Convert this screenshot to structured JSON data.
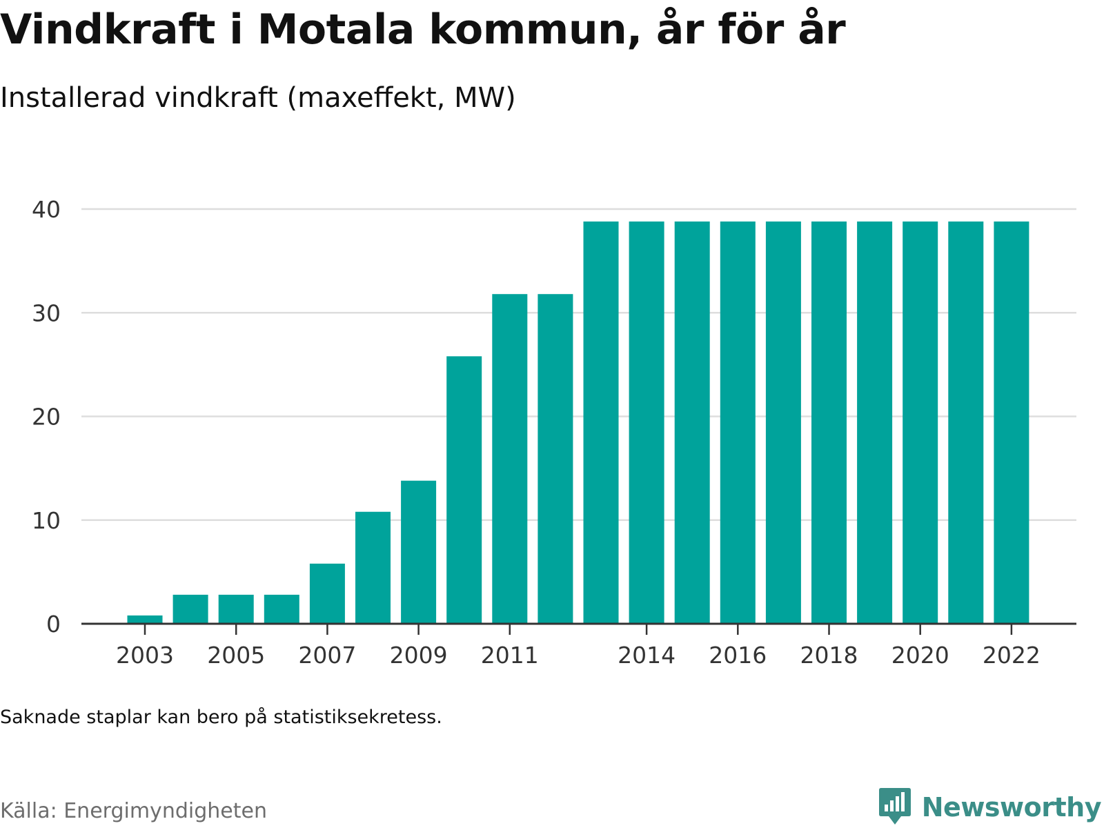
{
  "header": {
    "title": "Vindkraft i Motala kommun, år för år",
    "subtitle": "Installerad vindkraft (maxeffekt, MW)"
  },
  "footer": {
    "note": "Saknade staplar kan bero på statistiksekretess.",
    "source": "Källa: Energimyndigheten",
    "brand": "Newsworthy",
    "brand_icon": "bar-chart-speech-bubble-icon"
  },
  "colors": {
    "bar": "#00a39b",
    "grid": "#dddddd",
    "axis": "#333333",
    "tick_text": "#333333",
    "brand": "#3b8e88"
  },
  "chart_data": {
    "type": "bar",
    "title": "Vindkraft i Motala kommun, år för år",
    "subtitle": "Installerad vindkraft (maxeffekt, MW)",
    "xlabel": "",
    "ylabel": "",
    "categories": [
      2003,
      2004,
      2005,
      2006,
      2007,
      2008,
      2009,
      2010,
      2011,
      2012,
      2013,
      2014,
      2015,
      2016,
      2017,
      2018,
      2019,
      2020,
      2021,
      2022
    ],
    "values": [
      0.8,
      2.8,
      2.8,
      2.8,
      5.8,
      10.8,
      13.8,
      25.8,
      31.8,
      31.8,
      38.8,
      38.8,
      38.8,
      38.8,
      38.8,
      38.8,
      38.8,
      38.8,
      38.8,
      38.8
    ],
    "x_tick_labels": [
      "2003",
      "2005",
      "2007",
      "2009",
      "2011",
      "2014",
      "2016",
      "2018",
      "2020",
      "2022"
    ],
    "y_ticks": [
      0,
      10,
      20,
      30,
      40
    ],
    "ylim": [
      0,
      40
    ],
    "grid": true,
    "legend": "none"
  }
}
